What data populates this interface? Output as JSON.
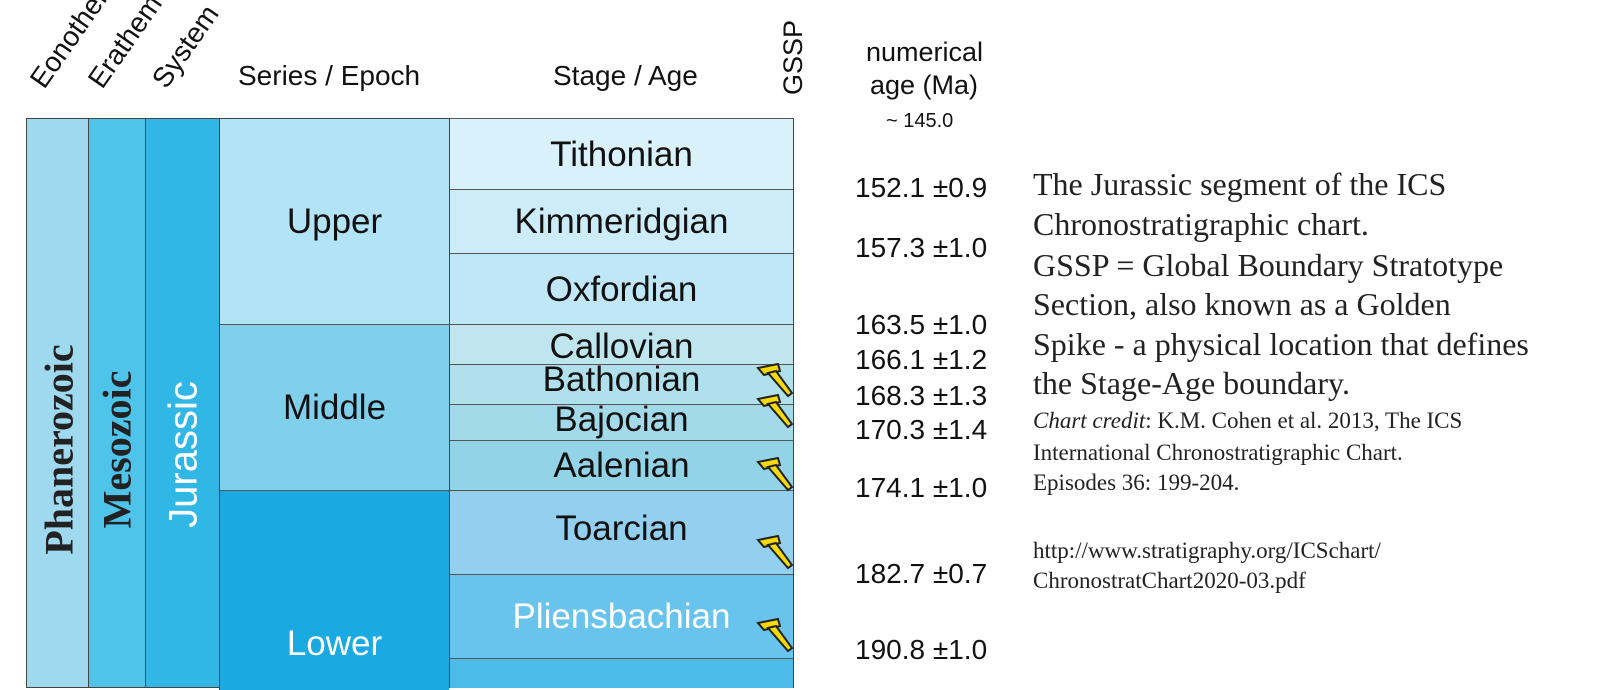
{
  "headers": {
    "eonothem": "Eonothem",
    "erathem": "Erathem",
    "system": "System",
    "series": "Series / Epoch",
    "stage": "Stage / Age",
    "gssp": "GSSP",
    "numerical_line1": "numerical",
    "numerical_line2": "age (Ma)",
    "top_age": "~ 145.0"
  },
  "columns": {
    "eonothem": "Phanerozoic",
    "erathem": "Mesozoic",
    "system": "Jurassic"
  },
  "series": [
    {
      "name": "Upper"
    },
    {
      "name": "Middle"
    },
    {
      "name": "Lower"
    }
  ],
  "stages": [
    {
      "name": "Tithonian",
      "gssp": false
    },
    {
      "name": "Kimmeridgian",
      "gssp": false
    },
    {
      "name": "Oxfordian",
      "gssp": false
    },
    {
      "name": "Callovian",
      "gssp": false
    },
    {
      "name": "Bathonian",
      "gssp": true
    },
    {
      "name": "Bajocian",
      "gssp": true
    },
    {
      "name": "Aalenian",
      "gssp": true
    },
    {
      "name": "Toarcian",
      "gssp": true
    },
    {
      "name": "Pliensbachian",
      "gssp": true
    }
  ],
  "ages": [
    "152.1 ±0.9",
    "157.3 ±1.0",
    "163.5 ±1.0",
    "166.1 ±1.2",
    "168.3 ±1.3",
    "170.3 ±1.4",
    "174.1 ±1.0",
    "182.7 ±0.7",
    "190.8 ±1.0"
  ],
  "notes": {
    "line1": "The Jurassic segment of the ICS",
    "line2": "Chronostratigraphic chart.",
    "line3": "GSSP = Global Boundary Stratotype",
    "line4": "Section, also known as a Golden",
    "line5": "Spike - a physical location that defines",
    "line6": "the Stage-Age boundary.",
    "credit_label": "Chart credit",
    "credit_rest": ": K.M. Cohen et al. 2013, The ICS",
    "credit_line2": "International Chronostratigraphic Chart.",
    "credit_line3": "Episodes 36: 199-204.",
    "url_line1": "http://www.stratigraphy.org/ICSchart/",
    "url_line2": "ChronostratChart2020-03.pdf"
  },
  "colors": {
    "phanerozoic": "#9fd9ef",
    "mesozoic": "#4fc4ea",
    "jurassic": "#30b7e6",
    "upper_series": "#b3e3f7",
    "middle_series": "#80d0ec",
    "lower_series": "#1aa9e0",
    "gssp_spike": "#f5d90a"
  }
}
